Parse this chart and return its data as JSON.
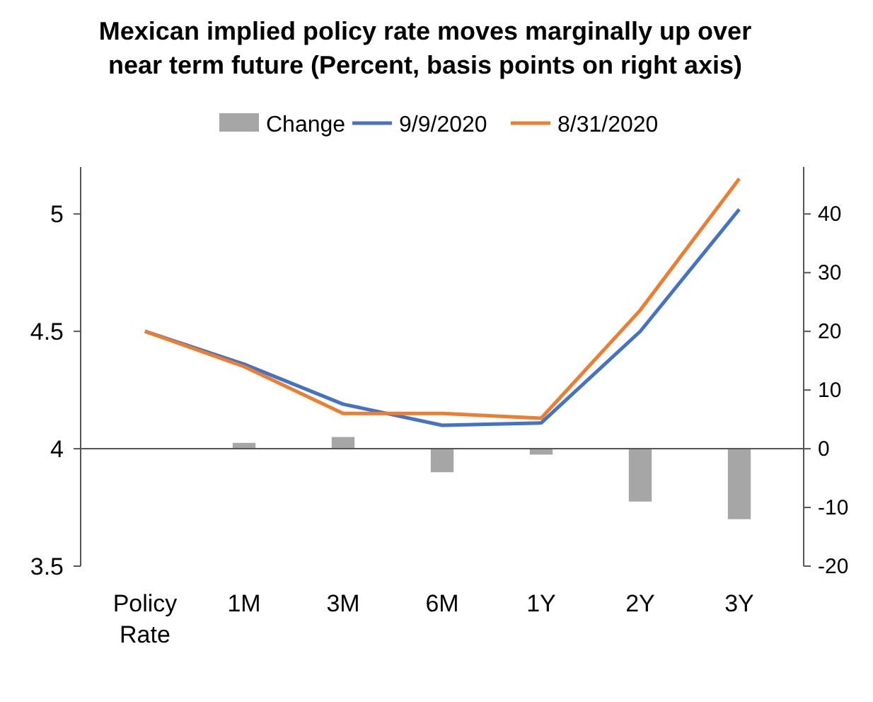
{
  "chart_data": {
    "type": "line",
    "title": "Mexican implied policy rate moves marginally up over near term future (Percent, basis points on right axis)",
    "categories": [
      "Policy Rate",
      "1M",
      "3M",
      "6M",
      "1Y",
      "2Y",
      "3Y"
    ],
    "series": [
      {
        "name": "Change",
        "type": "bar",
        "axis": "y2",
        "color": "#a6a6a6",
        "values": [
          0,
          1,
          2,
          -4,
          -1,
          -9,
          -12
        ]
      },
      {
        "name": "9/9/2020",
        "color": "#4472c4",
        "values": [
          4.5,
          4.36,
          4.19,
          4.1,
          4.11,
          4.5,
          5.02
        ]
      },
      {
        "name": "8/31/2020",
        "color": "#ed7d31",
        "values": [
          4.5,
          4.35,
          4.15,
          4.15,
          4.13,
          4.59,
          5.15
        ]
      }
    ],
    "ylim": [
      3.5,
      5.2
    ],
    "yticks": [
      3.5,
      4,
      4.5,
      5
    ],
    "y2lim": [
      -20,
      48
    ],
    "y2ticks": [
      -20,
      -10,
      0,
      10,
      20,
      30,
      40
    ],
    "legend": "top",
    "marker": "none",
    "line_style": "solid"
  }
}
